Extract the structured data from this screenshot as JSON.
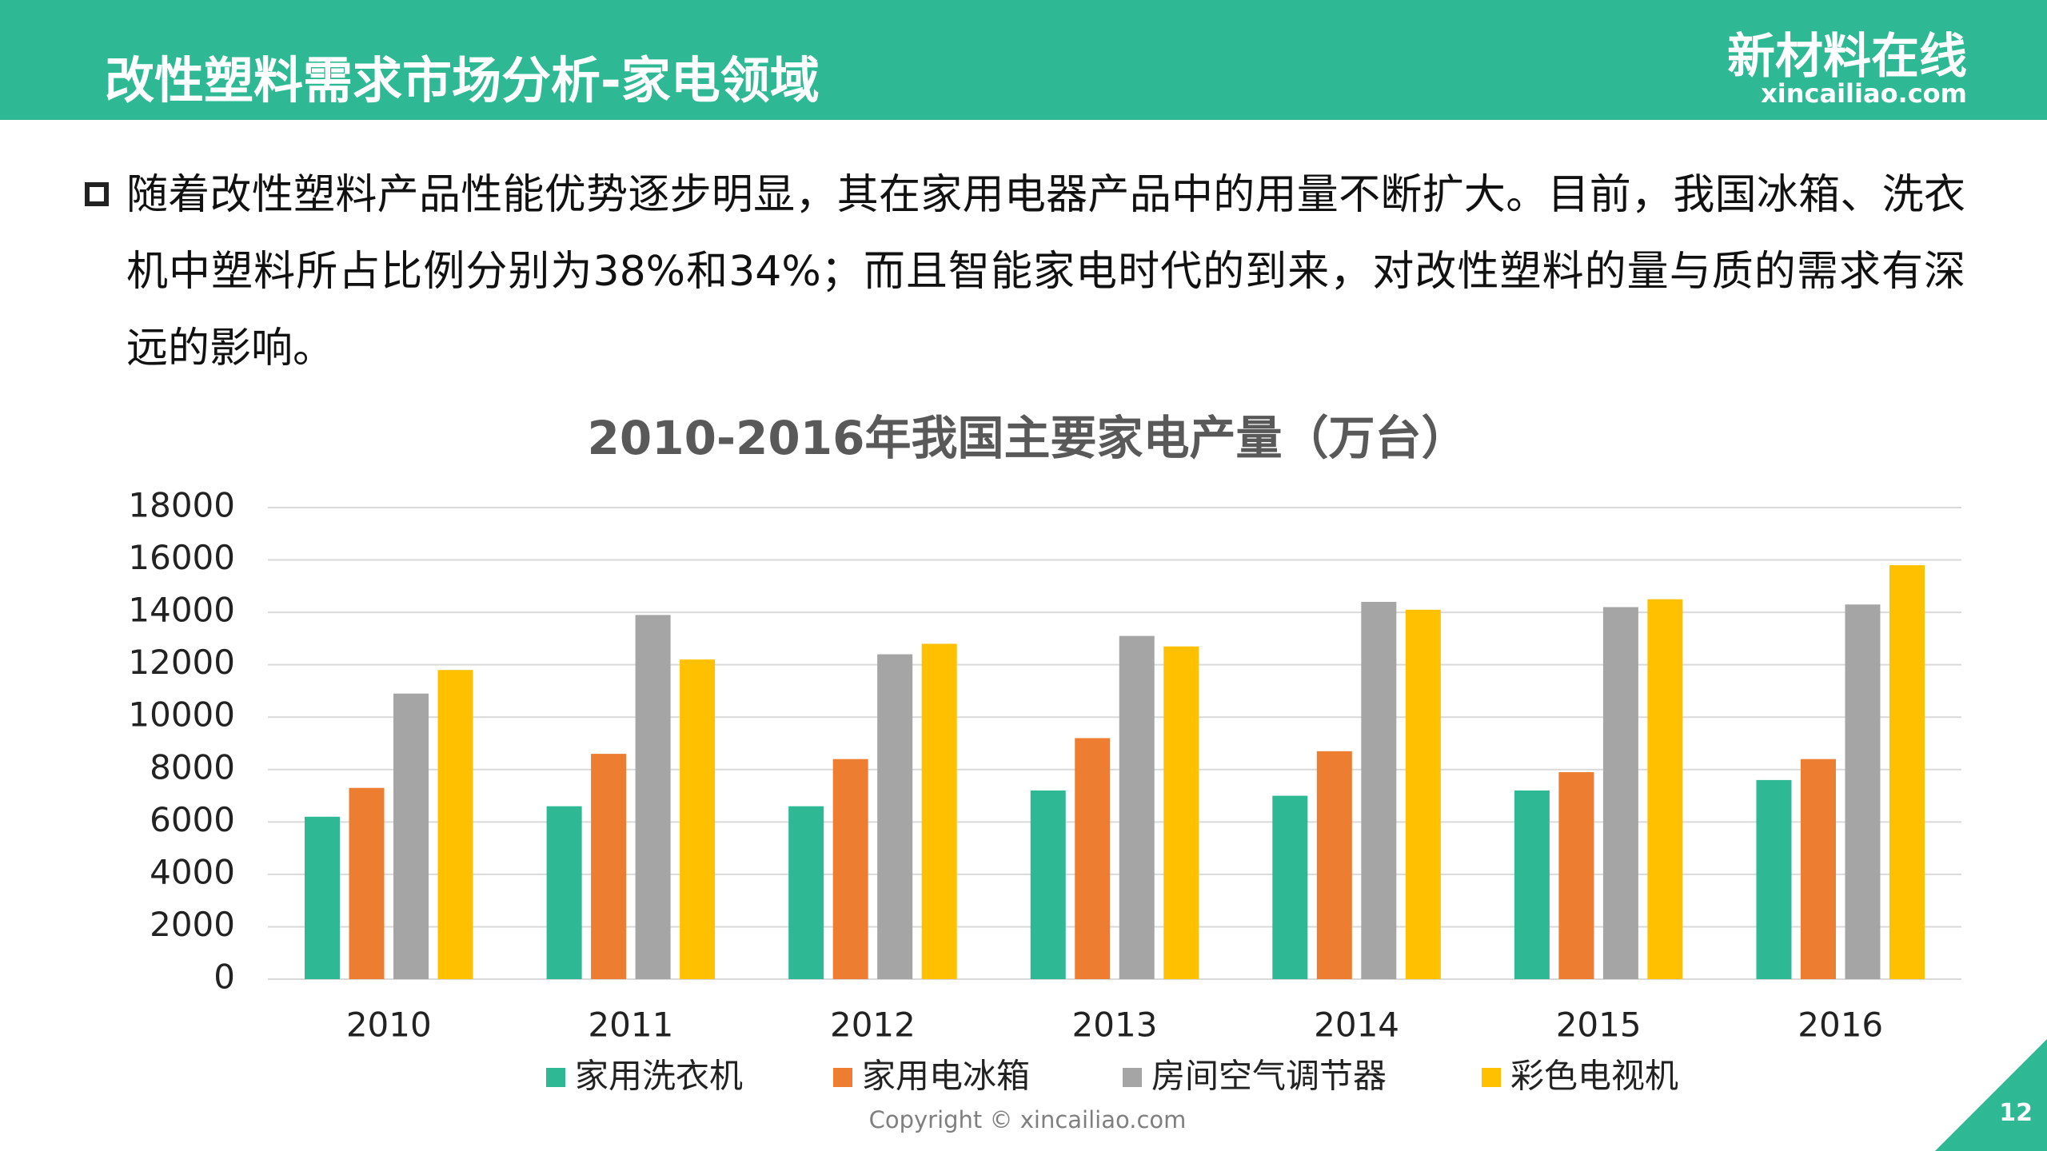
{
  "header": {
    "title": "改性塑料需求市场分析-家电领域",
    "logo_name": "新材料在线",
    "logo_url": "xincailiao.com"
  },
  "bullet": "随着改性塑料产品性能优势逐步明显，其在家用电器产品中的用量不断扩大。目前，我国冰箱、洗衣机中塑料所占比例分别为38%和34%；而且智能家电时代的到来，对改性塑料的量与质的需求有深远的影响。",
  "chart_data": {
    "type": "bar",
    "title": "2010-2016年我国主要家电产量（万台）",
    "categories": [
      "2010",
      "2011",
      "2012",
      "2013",
      "2014",
      "2015",
      "2016"
    ],
    "series": [
      {
        "name": "家用洗衣机",
        "color": "#2eb894",
        "values": [
          6200,
          6600,
          6600,
          7200,
          7000,
          7200,
          7600
        ]
      },
      {
        "name": "家用电冰箱",
        "color": "#ed7d31",
        "values": [
          7300,
          8600,
          8400,
          9200,
          8700,
          7900,
          8400
        ]
      },
      {
        "name": "房间空气调节器",
        "color": "#a5a5a5",
        "values": [
          10900,
          13900,
          12400,
          13100,
          14400,
          14200,
          14300
        ]
      },
      {
        "name": "彩色电视机",
        "color": "#ffc000",
        "values": [
          11800,
          12200,
          12800,
          12700,
          14100,
          14500,
          15800
        ]
      }
    ],
    "ylim": [
      0,
      18000
    ],
    "yticks": [
      0,
      2000,
      4000,
      6000,
      8000,
      10000,
      12000,
      14000,
      16000,
      18000
    ],
    "grid": true,
    "legend": "bottom"
  },
  "footer": {
    "copyright": "Copyright © xincailiao.com",
    "page_number": "12"
  }
}
